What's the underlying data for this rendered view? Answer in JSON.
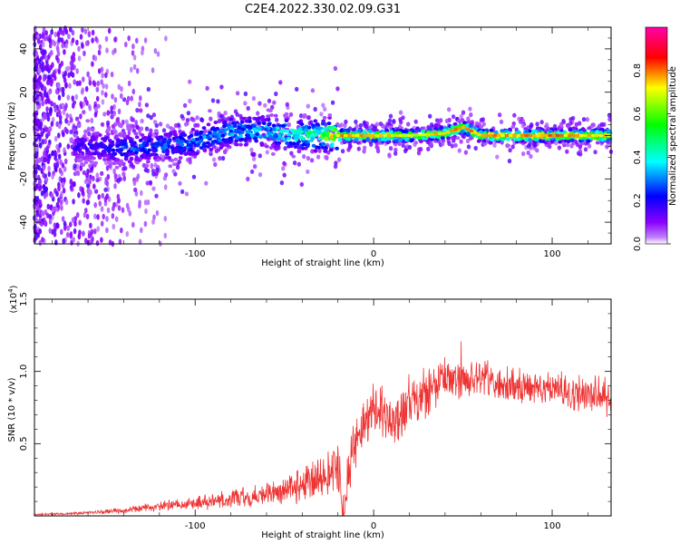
{
  "figure": {
    "title": "C2E4.2022.330.02.09.G31"
  },
  "chart_data": [
    {
      "type": "heatmap",
      "xlabel": "Height of straight line (km)",
      "ylabel": "Frequency (Hz)",
      "xlim": [
        -190,
        133
      ],
      "ylim": [
        -50,
        50
      ],
      "x_ticks": [
        -100,
        0,
        100
      ],
      "y_ticks": [
        -40,
        -20,
        0,
        20,
        40
      ],
      "colorbar": {
        "label": "Normalized spectral amplitude",
        "range": [
          0.0,
          1.0
        ],
        "ticks": [
          0.0,
          0.2,
          0.4,
          0.6,
          0.8
        ],
        "colors": [
          "#ffffff",
          "#8a00ff",
          "#0000ff",
          "#00ffff",
          "#00ff00",
          "#ffff00",
          "#ff0000",
          "#ff00aa"
        ]
      },
      "ridge": {
        "description_points_x": [
          -165,
          -140,
          -120,
          -100,
          -80,
          -60,
          -40,
          -20,
          0,
          20,
          40,
          50,
          60,
          80,
          100,
          120,
          133
        ],
        "frequency": [
          -5,
          -6,
          -5,
          -3,
          2,
          2,
          0,
          0,
          0,
          0,
          1,
          4,
          0,
          0,
          0,
          0,
          0
        ],
        "peak_amplitude": [
          0.2,
          0.3,
          0.3,
          0.35,
          0.4,
          0.45,
          0.5,
          0.85,
          0.8,
          0.75,
          0.8,
          0.85,
          0.8,
          0.85,
          0.85,
          0.8,
          0.8
        ]
      }
    },
    {
      "type": "line",
      "xlabel": "Height of straight line (km)",
      "ylabel": "SNR (10 * v/v)",
      "y_multiplier": "(x10^4)",
      "xlim": [
        -190,
        133
      ],
      "ylim": [
        0,
        1.5
      ],
      "x_ticks": [
        -100,
        0,
        100
      ],
      "y_ticks": [
        0.5,
        1.0,
        1.5
      ],
      "color": "#ee3333",
      "series": [
        {
          "x": [
            -190,
            -170,
            -150,
            -130,
            -110,
            -90,
            -70,
            -50,
            -40,
            -30,
            -25,
            -20,
            -17,
            -12,
            -5,
            0,
            5,
            10,
            15,
            20,
            30,
            40,
            50,
            60,
            70,
            80,
            90,
            100,
            110,
            120,
            133
          ],
          "y": [
            0.01,
            0.015,
            0.03,
            0.05,
            0.08,
            0.1,
            0.13,
            0.18,
            0.22,
            0.27,
            0.3,
            0.35,
            0.05,
            0.45,
            0.6,
            0.75,
            0.7,
            0.65,
            0.7,
            0.8,
            0.85,
            0.95,
            0.95,
            0.95,
            0.9,
            0.9,
            0.9,
            0.88,
            0.85,
            0.85,
            0.82
          ]
        }
      ]
    }
  ]
}
